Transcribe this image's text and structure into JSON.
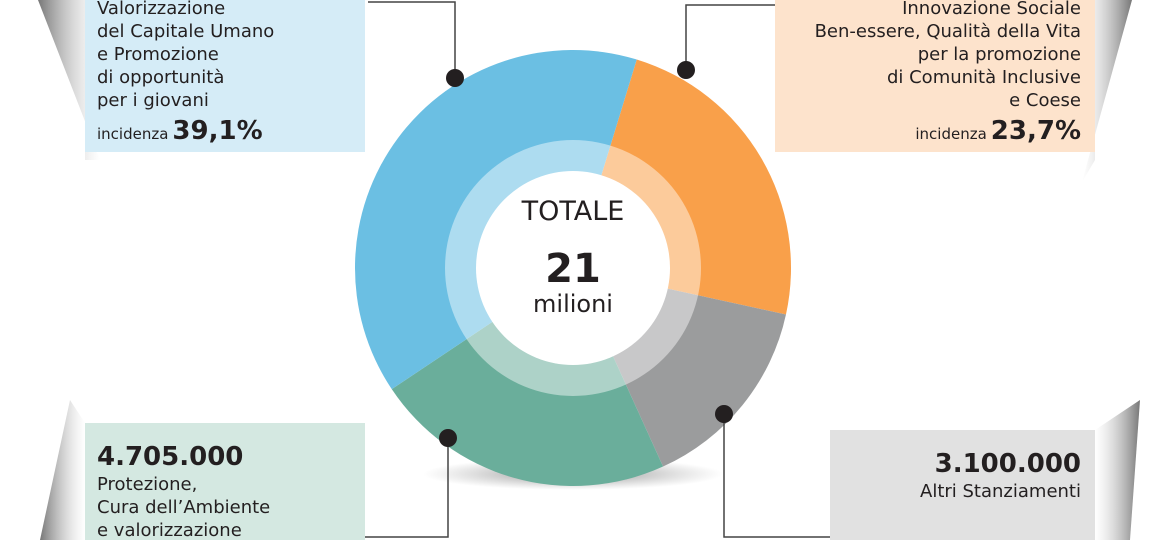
{
  "chart_data": {
    "type": "pie",
    "center_title": "TOTALE",
    "total": 21,
    "total_unit": "milioni",
    "value_prefix": "incidenza",
    "categories": [
      "Innovazione Sociale\nBen-essere, Qualità della Vita\nper la promozione\ndi Comunità Inclusive\ne Coese",
      "Altri Stanziamenti",
      "Protezione,\nCura dell’Ambiente\ne valorizzazione",
      "Valorizzazione\ndel Capitale Umano\ne Promozione\ndi opportunità\nper i giovani"
    ],
    "values": [
      23.7,
      14.8,
      22.4,
      39.1
    ],
    "value_labels": [
      "23,7%",
      null,
      null,
      "39,1%"
    ],
    "amounts": [
      null,
      "3.100.000",
      "4.705.000",
      null
    ],
    "colors": [
      "#f9a04a",
      "#9b9c9d",
      "#6aae9b",
      "#6bbfe3"
    ]
  }
}
